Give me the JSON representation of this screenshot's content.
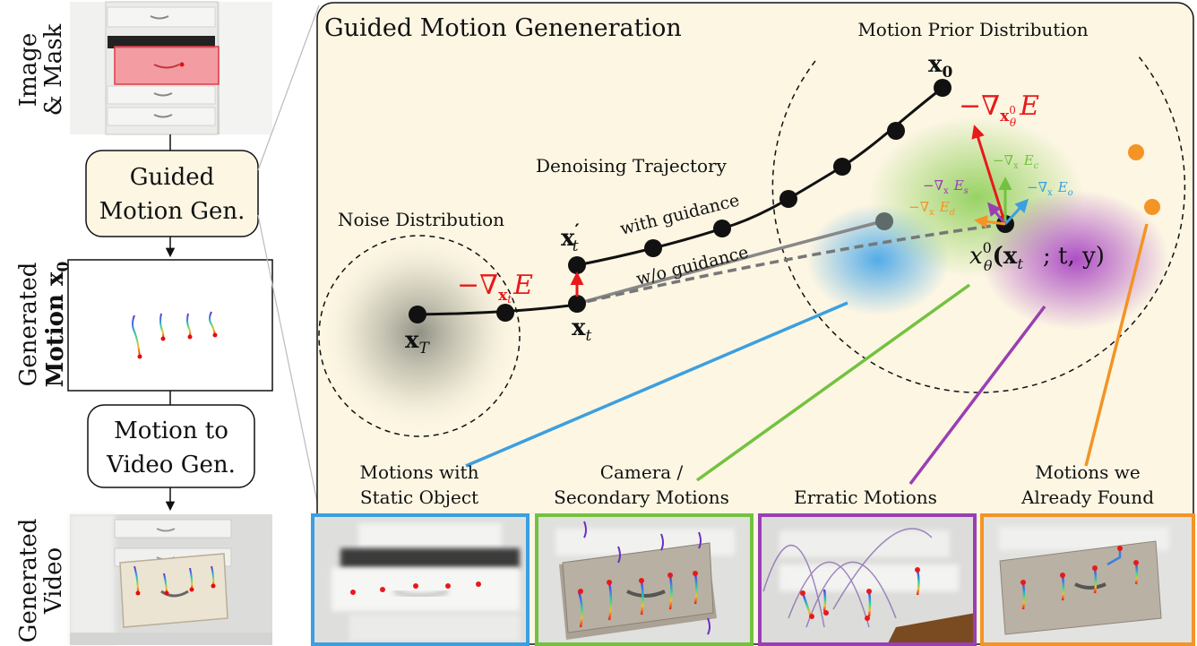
{
  "left_column": {
    "labels": {
      "image_mask_line1": "Image",
      "image_mask_line2": "& Mask",
      "generated_motion_line1": "Generated",
      "generated_motion_line2": "Motion x",
      "generated_motion_sub": "0",
      "generated_video_line1": "Generated",
      "generated_video_line2": "Video"
    },
    "boxes": {
      "guided_line1": "Guided",
      "guided_line2": "Motion Gen.",
      "m2v_line1": "Motion to",
      "m2v_line2": "Video Gen."
    }
  },
  "main_panel": {
    "title": "Guided Motion Geneneration",
    "motion_prior_label": "Motion Prior Distribution",
    "noise_label": "Noise Distribution",
    "denoising_label": "Denoising Trajectory",
    "with_guidance": "with guidance",
    "without_guidance": "w/o guidance",
    "math": {
      "x0": "x",
      "x0_sub": "0",
      "xT": "x",
      "xT_sub": "T",
      "xt": "x",
      "xt_sub": "t",
      "xt_prime": "x",
      "xt_prime_sup": "′",
      "xt_prime_sub": "t",
      "grad_xt": "−∇",
      "grad_xt_sub": "x",
      "grad_xt_subsub": "t",
      "grad_xt_E": "E",
      "grad_x0": "−∇",
      "grad_x0_sub": "x",
      "grad_x0_subsup": "0",
      "grad_x0_subsub": "θ",
      "grad_x0_E": "E",
      "x0_theta": "x",
      "x0_theta_sup": "0",
      "x0_theta_sub": "θ",
      "x0_theta_args": "(x",
      "x0_theta_args_sub": "t",
      "x0_theta_args_rest": "; t, y)",
      "grad_c": "−∇",
      "grad_c_E": "E",
      "grad_c_sub": "c",
      "grad_o": "−∇",
      "grad_o_E": "E",
      "grad_o_sub": "o",
      "grad_s": "−∇",
      "grad_s_E": "E",
      "grad_s_sub": "s",
      "grad_d": "−∇",
      "grad_d_E": "E",
      "grad_d_sub": "d",
      "small_sub": "x",
      "small_sup": "0",
      "small_subsub": "θ"
    },
    "categories": [
      {
        "line1": "Motions with",
        "line2": "Static Object"
      },
      {
        "line1": "Camera /",
        "line2": "Secondary Motions"
      },
      {
        "line1": "Erratic Motions",
        "line2": ""
      },
      {
        "line1": "Motions we",
        "line2": "Already Found"
      }
    ]
  },
  "colors": {
    "blue": "#3b9fe0",
    "green": "#73c23f",
    "purple": "#9a3fb2",
    "orange": "#f39425",
    "red": "#e8191b",
    "panel_bg": "#fcf6e3",
    "box_bg": "#fcf6e3"
  }
}
